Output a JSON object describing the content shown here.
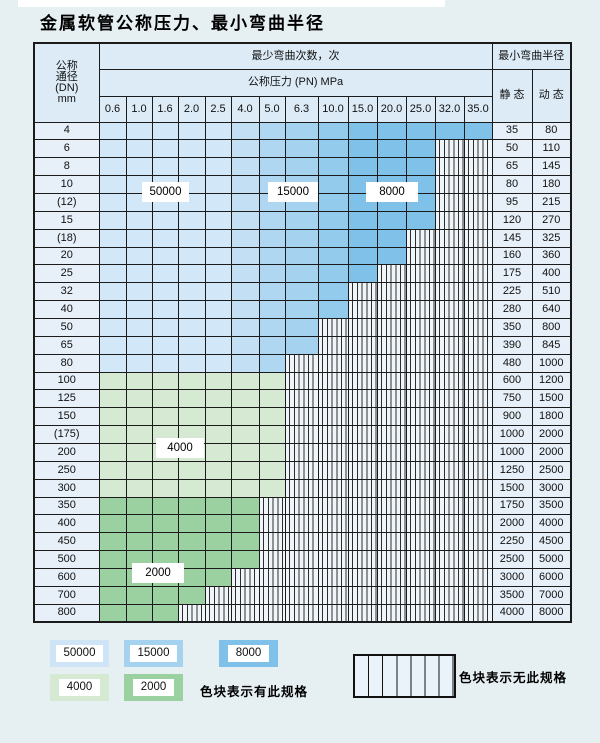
{
  "title": "金属软管公称压力、最小弯曲半径",
  "table": {
    "header": {
      "dn_label_lines": [
        "公称",
        "通径",
        "(DN)",
        "mm"
      ],
      "bend_cycles_label": "最少弯曲次数，次",
      "pressure_label": "公称压力 (PN) MPa",
      "pressure_columns": [
        "0.6",
        "1.0",
        "1.6",
        "2.0",
        "2.5",
        "4.0",
        "5.0",
        "6.3",
        "10.0",
        "15.0",
        "20.0",
        "25.0",
        "32.0",
        "35.0"
      ],
      "bend_radius_label": "最小弯曲半径",
      "static_label": "静 态",
      "dynamic_label": "动 态"
    },
    "zone_labels": [
      "50000",
      "15000",
      "8000",
      "4000",
      "2000"
    ],
    "rows": [
      {
        "dn": "4",
        "colored": 14,
        "palette": "blue",
        "static": "35",
        "dynamic": "80"
      },
      {
        "dn": "6",
        "colored": 12,
        "palette": "blue",
        "static": "50",
        "dynamic": "110"
      },
      {
        "dn": "8",
        "colored": 12,
        "palette": "blue",
        "static": "65",
        "dynamic": "145"
      },
      {
        "dn": "10",
        "colored": 12,
        "palette": "blue",
        "static": "80",
        "dynamic": "180"
      },
      {
        "dn": "(12)",
        "colored": 12,
        "palette": "blue",
        "static": "95",
        "dynamic": "215"
      },
      {
        "dn": "15",
        "colored": 12,
        "palette": "blue",
        "static": "120",
        "dynamic": "270"
      },
      {
        "dn": "(18)",
        "colored": 11,
        "palette": "blue",
        "static": "145",
        "dynamic": "325"
      },
      {
        "dn": "20",
        "colored": 11,
        "palette": "blue",
        "static": "160",
        "dynamic": "360"
      },
      {
        "dn": "25",
        "colored": 10,
        "palette": "blue",
        "static": "175",
        "dynamic": "400"
      },
      {
        "dn": "32",
        "colored": 9,
        "palette": "blue",
        "static": "225",
        "dynamic": "510"
      },
      {
        "dn": "40",
        "colored": 9,
        "palette": "blue",
        "static": "280",
        "dynamic": "640"
      },
      {
        "dn": "50",
        "colored": 8,
        "palette": "blue",
        "static": "350",
        "dynamic": "800"
      },
      {
        "dn": "65",
        "colored": 8,
        "palette": "blue",
        "static": "390",
        "dynamic": "845"
      },
      {
        "dn": "80",
        "colored": 7,
        "palette": "blue",
        "static": "480",
        "dynamic": "1000"
      },
      {
        "dn": "100",
        "colored": 7,
        "palette": "green_light",
        "static": "600",
        "dynamic": "1200"
      },
      {
        "dn": "125",
        "colored": 7,
        "palette": "green_light",
        "static": "750",
        "dynamic": "1500"
      },
      {
        "dn": "150",
        "colored": 7,
        "palette": "green_light",
        "static": "900",
        "dynamic": "1800"
      },
      {
        "dn": "(175)",
        "colored": 7,
        "palette": "green_light",
        "static": "1000",
        "dynamic": "2000"
      },
      {
        "dn": "200",
        "colored": 7,
        "palette": "green_light",
        "static": "1000",
        "dynamic": "2000"
      },
      {
        "dn": "250",
        "colored": 7,
        "palette": "green_light",
        "static": "1250",
        "dynamic": "2500"
      },
      {
        "dn": "300",
        "colored": 7,
        "palette": "green_light",
        "static": "1500",
        "dynamic": "3000"
      },
      {
        "dn": "350",
        "colored": 6,
        "palette": "green_dark",
        "static": "1750",
        "dynamic": "3500"
      },
      {
        "dn": "400",
        "colored": 6,
        "palette": "green_dark",
        "static": "2000",
        "dynamic": "4000"
      },
      {
        "dn": "450",
        "colored": 6,
        "palette": "green_dark",
        "static": "2250",
        "dynamic": "4500"
      },
      {
        "dn": "500",
        "colored": 6,
        "palette": "green_dark",
        "static": "2500",
        "dynamic": "5000"
      },
      {
        "dn": "600",
        "colored": 5,
        "palette": "green_dark",
        "static": "3000",
        "dynamic": "6000"
      },
      {
        "dn": "700",
        "colored": 4,
        "palette": "green_dark",
        "static": "3500",
        "dynamic": "7000"
      },
      {
        "dn": "800",
        "colored": 3,
        "palette": "green_dark",
        "static": "4000",
        "dynamic": "8000"
      }
    ]
  },
  "legend": {
    "items": [
      {
        "value": "50000",
        "palette": "legend_blue_light"
      },
      {
        "value": "15000",
        "palette": "legend_blue_mid"
      },
      {
        "value": "8000",
        "palette": "legend_blue_dark"
      },
      {
        "value": "4000",
        "palette": "green_light"
      },
      {
        "value": "2000",
        "palette": "green_dark"
      }
    ],
    "has_spec_note": "色块表示有此规格",
    "no_spec_note": "色块表示无此规格"
  },
  "colors": {
    "blue_by_column": [
      "#d2e7f7",
      "#d2e7f7",
      "#d2e7f7",
      "#d2e7f7",
      "#d2e7f7",
      "#c3dff4",
      "#b0d7f1",
      "#a5d2ef",
      "#93cbec",
      "#7fc1e8",
      "#7fc1e8",
      "#7fc1e8",
      "#7fc1e8",
      "#7fc1e8"
    ],
    "green_light": "#d6e9d3",
    "green_dark": "#9bd0a1",
    "legend_blue_light": "#cfe4f6",
    "legend_blue_mid": "#a5d2ef",
    "legend_blue_dark": "#7fc1e8",
    "hatch_bg": "#f0f5fa",
    "header_bg": "#dcebf6",
    "label_cell_bg": "#e7f0f8",
    "page_bg": "#e6eff2",
    "border": "#1b1b1b"
  }
}
